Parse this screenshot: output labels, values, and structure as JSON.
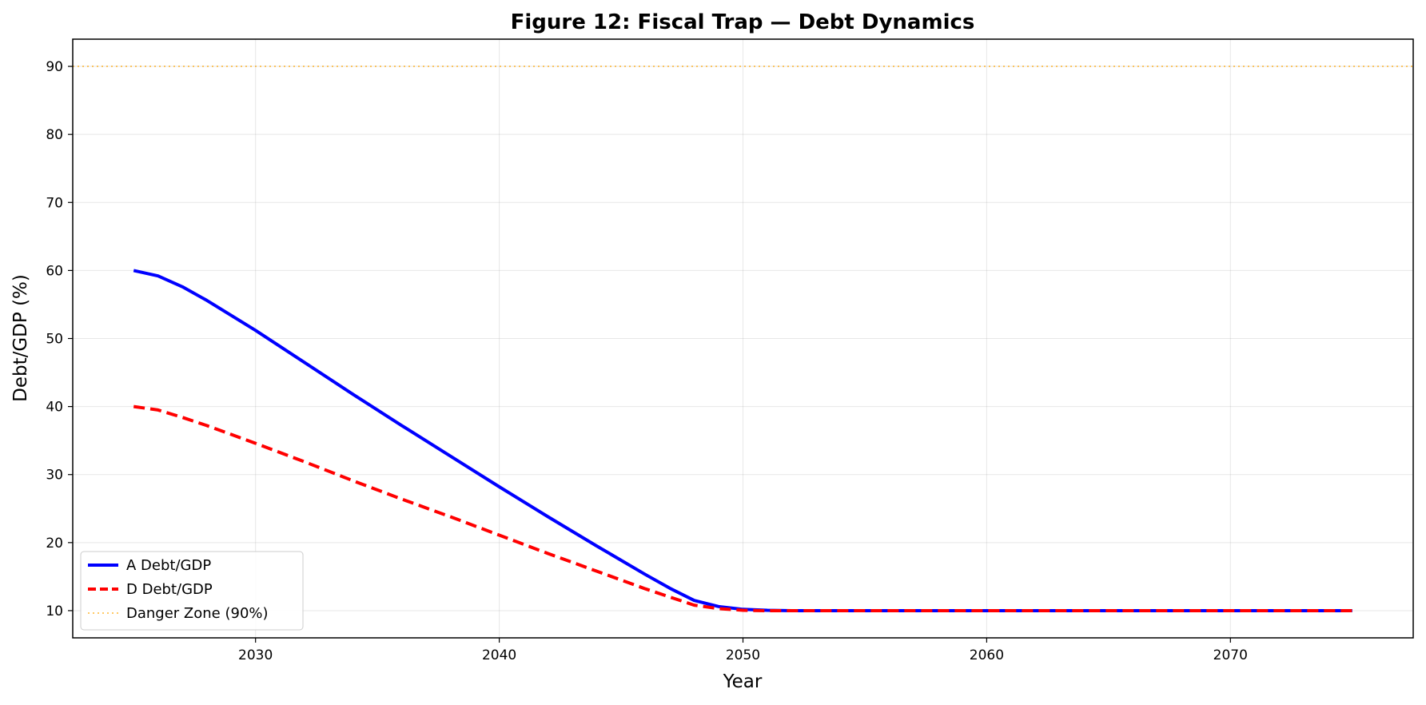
{
  "chart_data": {
    "type": "line",
    "title": "Figure 12: Fiscal Trap — Debt Dynamics",
    "xlabel": "Year",
    "ylabel": "Debt/GDP (%)",
    "xlim": [
      2022.5,
      2077.5
    ],
    "ylim": [
      6,
      94
    ],
    "x_ticks": [
      2030,
      2040,
      2050,
      2060,
      2070
    ],
    "y_ticks": [
      10,
      20,
      30,
      40,
      50,
      60,
      70,
      80,
      90
    ],
    "grid": true,
    "legend_position": "lower-left",
    "series": [
      {
        "name": "A Debt/GDP",
        "color": "#0000ff",
        "style": "solid",
        "x": [
          2025,
          2026,
          2027,
          2028,
          2030,
          2032,
          2034,
          2036,
          2038,
          2040,
          2042,
          2044,
          2046,
          2047,
          2048,
          2049,
          2050,
          2051,
          2052,
          2055,
          2060,
          2065,
          2070,
          2075
        ],
        "y": [
          60,
          59.2,
          57.6,
          55.6,
          51.2,
          46.5,
          41.8,
          37.2,
          32.7,
          28.2,
          23.8,
          19.5,
          15.3,
          13.3,
          11.5,
          10.6,
          10.2,
          10.05,
          10,
          10,
          10,
          10,
          10,
          10
        ]
      },
      {
        "name": "D Debt/GDP",
        "color": "#ff0000",
        "style": "dashed",
        "x": [
          2025,
          2026,
          2027,
          2028,
          2030,
          2032,
          2034,
          2036,
          2038,
          2040,
          2042,
          2044,
          2046,
          2047,
          2048,
          2049,
          2050,
          2051,
          2052,
          2055,
          2060,
          2065,
          2070,
          2075
        ],
        "y": [
          40,
          39.5,
          38.4,
          37.2,
          34.6,
          31.9,
          29.1,
          26.4,
          23.8,
          21.1,
          18.4,
          15.8,
          13.2,
          12,
          10.8,
          10.3,
          10.05,
          10,
          10,
          10,
          10,
          10,
          10,
          10
        ]
      }
    ],
    "reference_lines": [
      {
        "name": "Danger Zone (90%)",
        "y": 90,
        "color": "#ffa500",
        "style": "dotted"
      }
    ]
  }
}
